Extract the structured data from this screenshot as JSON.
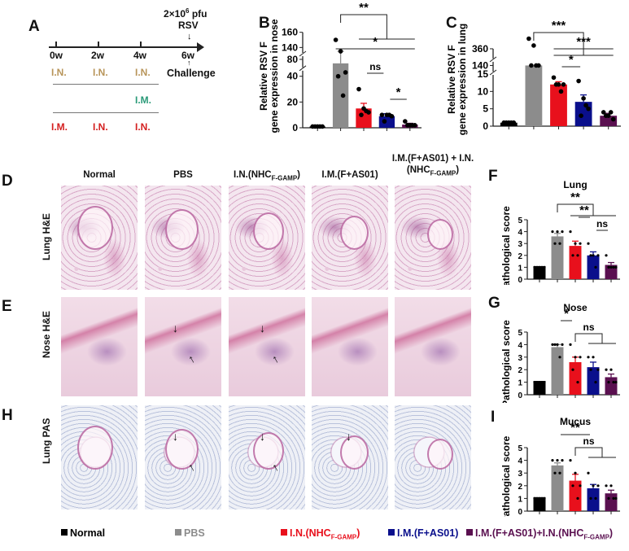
{
  "panels": {
    "A": "A",
    "B": "B",
    "C": "C",
    "D": "D",
    "E": "E",
    "F": "F",
    "G": "G",
    "H": "H",
    "I": "I"
  },
  "timeline": {
    "ticks": [
      "0w",
      "2w",
      "4w",
      "6w"
    ],
    "challenge_dose": "2×10",
    "challenge_exp": "6",
    "challenge_unit": " pfu",
    "challenge_virus": "RSV",
    "challenge_label": "Challenge",
    "rows": [
      {
        "items": [
          "I.N.",
          "I.N.",
          "I.N."
        ],
        "color": "#b8955a"
      },
      {
        "items": [
          "",
          "",
          "I.M."
        ],
        "color": "#2a9a78"
      },
      {
        "items": [
          "I.M.",
          "I.N.",
          "I.N."
        ],
        "color": "#d42020"
      }
    ]
  },
  "histology": {
    "columns": [
      {
        "main": "Normal",
        "sub": "",
        "tail": ""
      },
      {
        "main": "PBS",
        "sub": "",
        "tail": ""
      },
      {
        "main": "I.N.(NHC",
        "sub": "F-GAMP",
        "tail": ")"
      },
      {
        "main": "I.M.(F+AS01)",
        "sub": "",
        "tail": ""
      },
      {
        "main": "I.M.(F+AS01) + I.N.(NHC",
        "sub": "F-GAMP",
        "tail": ")"
      }
    ],
    "rows": [
      "Lung H&E",
      "Nose H&E",
      "Lung PAS"
    ],
    "arrow": "↓"
  },
  "legend": [
    {
      "main": "Normal",
      "sub": "",
      "tail": "",
      "color": "#000000"
    },
    {
      "main": "PBS",
      "sub": "",
      "tail": "",
      "color": "#8c8c8c"
    },
    {
      "main": "I.N.(NHC",
      "sub": "F-GAMP",
      "tail": ")",
      "color": "#e8101c"
    },
    {
      "main": "I.M.(F+AS01)",
      "sub": "",
      "tail": "",
      "color": "#0a0f8c"
    },
    {
      "main": "I.M.(F+AS01)+I.N.(NHC",
      "sub": "F-GAMP",
      "tail": ")",
      "color": "#5a1050"
    }
  ],
  "chart_data": [
    {
      "id": "B",
      "type": "bar",
      "title": "",
      "ylabel": [
        "Relative RSV F",
        "gene expression in nose"
      ],
      "categories": [
        "Normal",
        "PBS",
        "I.N.(NHC F-GAMP)",
        "I.M.(F+AS01)",
        "I.M.(F+AS01)+I.N.(NHC F-GAMP)"
      ],
      "colors": [
        "#000000",
        "#8c8c8c",
        "#e8101c",
        "#0a0f8c",
        "#5a1050"
      ],
      "values": [
        1,
        75,
        15,
        9,
        2.5
      ],
      "sem": [
        0.2,
        25,
        4,
        2,
        1
      ],
      "points": [
        [
          1,
          1,
          1,
          1,
          1
        ],
        [
          150,
          135,
          43,
          40,
          25
        ],
        [
          30,
          15,
          12,
          10,
          13
        ],
        [
          10,
          10,
          9,
          5,
          10
        ],
        [
          5,
          2,
          2,
          2,
          2
        ]
      ],
      "y_segments": [
        [
          0,
          45
        ],
        [
          72,
          85
        ],
        [
          135,
          165
        ]
      ],
      "yticks": [
        0,
        20,
        40,
        80,
        140,
        160
      ],
      "comparisons": [
        {
          "from": 1,
          "to": [
            2,
            4
          ],
          "label": "**",
          "level": 0
        },
        {
          "from": 1,
          "to": [
            2,
            4
          ],
          "label": "*",
          "level": 1,
          "simple": true
        },
        {
          "from": 2,
          "to": [
            3
          ],
          "label": "ns",
          "level": 2
        },
        {
          "from": 3,
          "to": [
            4
          ],
          "label": "*",
          "level": 3
        }
      ]
    },
    {
      "id": "C",
      "type": "bar",
      "title": "",
      "ylabel": [
        "Relative RSV F",
        "gene expression in lung"
      ],
      "categories": [
        "Normal",
        "PBS",
        "I.N.(NHC F-GAMP)",
        "I.M.(F+AS01)",
        "I.M.(F+AS01)+I.N.(NHC F-GAMP)"
      ],
      "colors": [
        "#000000",
        "#8c8c8c",
        "#e8101c",
        "#0a0f8c",
        "#5a1050"
      ],
      "values": [
        1,
        140,
        12,
        7,
        3
      ],
      "sem": [
        0.1,
        0,
        0.8,
        2,
        0.7
      ],
      "points": [
        [
          1,
          1,
          1,
          1,
          1
        ],
        [
          385,
          368,
          140,
          140,
          140
        ],
        [
          14,
          12,
          12,
          12,
          10
        ],
        [
          13,
          8,
          5,
          3,
          6
        ],
        [
          4,
          3,
          2,
          3,
          4
        ]
      ],
      "y_segments": [
        [
          0,
          15
        ],
        [
          132,
          148
        ],
        [
          340,
          390
        ]
      ],
      "yticks": [
        0,
        5,
        10,
        15,
        140,
        360
      ],
      "comparisons": [
        {
          "from": 1,
          "to": [
            2,
            4
          ],
          "label": "***",
          "level": 0
        },
        {
          "from": 2,
          "to": [
            4
          ],
          "label": "***",
          "level": 1,
          "simple": true
        },
        {
          "from": 2,
          "to": [
            3
          ],
          "label": "*",
          "level": 2
        }
      ]
    },
    {
      "id": "F",
      "type": "bar",
      "title": "Lung",
      "ylabel": [
        "Pathological score"
      ],
      "categories": [
        "Normal",
        "PBS",
        "I.N.(NHC F-GAMP)",
        "I.M.(F+AS01)",
        "I.M.(F+AS01)+I.N.(NHC F-GAMP)"
      ],
      "colors": [
        "#000000",
        "#8c8c8c",
        "#e8101c",
        "#0a0f8c",
        "#5a1050"
      ],
      "values": [
        1.1,
        3.6,
        2.8,
        2.0,
        1.2
      ],
      "sem": [
        0,
        0.25,
        0.4,
        0.3,
        0.2
      ],
      "points": [
        [
          1,
          1,
          1,
          1,
          1
        ],
        [
          4,
          4,
          4,
          3,
          3
        ],
        [
          4,
          3,
          3,
          2,
          2
        ],
        [
          3,
          2,
          2,
          2,
          1
        ],
        [
          2,
          1,
          1,
          1,
          1
        ]
      ],
      "ylim": [
        0,
        5
      ],
      "yticks": [
        0,
        1,
        2,
        3,
        4,
        5
      ],
      "comparisons": [
        {
          "from": 1,
          "to": [
            2,
            4
          ],
          "label": "**",
          "level": 0
        },
        {
          "from": 2,
          "to": [
            3
          ],
          "label": "**",
          "level": 1
        },
        {
          "from": 3,
          "to": [
            4
          ],
          "label": "ns",
          "level": 2
        }
      ]
    },
    {
      "id": "G",
      "type": "bar",
      "title": "Nose",
      "ylabel": [
        "Pathological score"
      ],
      "categories": [
        "Normal",
        "PBS",
        "I.N.(NHC F-GAMP)",
        "I.M.(F+AS01)",
        "I.M.(F+AS01)+I.N.(NHC F-GAMP)"
      ],
      "colors": [
        "#000000",
        "#8c8c8c",
        "#e8101c",
        "#0a0f8c",
        "#5a1050"
      ],
      "values": [
        1.1,
        3.8,
        2.6,
        2.2,
        1.4
      ],
      "sem": [
        0,
        0.2,
        0.4,
        0.4,
        0.25
      ],
      "points": [
        [
          1,
          1,
          1,
          1,
          1
        ],
        [
          4,
          4,
          4,
          4,
          3
        ],
        [
          4,
          3,
          3,
          2,
          1
        ],
        [
          3,
          3,
          2,
          2,
          1
        ],
        [
          2,
          2,
          1,
          1,
          1
        ]
      ],
      "ylim": [
        0,
        5
      ],
      "yticks": [
        0,
        1,
        2,
        3,
        4,
        5
      ],
      "comparisons": [
        {
          "from": 1,
          "to": [
            2
          ],
          "label": "*",
          "level": 0
        },
        {
          "from": 2,
          "to": [
            3,
            4
          ],
          "label": "ns",
          "level": 1
        }
      ]
    },
    {
      "id": "I",
      "type": "bar",
      "title": "Mucus",
      "ylabel": [
        "Pathological score"
      ],
      "categories": [
        "Normal",
        "PBS",
        "I.N.(NHC F-GAMP)",
        "I.M.(F+AS01)",
        "I.M.(F+AS01)+I.N.(NHC F-GAMP)"
      ],
      "colors": [
        "#000000",
        "#8c8c8c",
        "#e8101c",
        "#0a0f8c",
        "#5a1050"
      ],
      "values": [
        1.1,
        3.6,
        2.4,
        1.8,
        1.4
      ],
      "sem": [
        0,
        0.2,
        0.5,
        0.3,
        0.25
      ],
      "points": [
        [
          1,
          1,
          1,
          1,
          1
        ],
        [
          4,
          4,
          4,
          3,
          3
        ],
        [
          4,
          3,
          2,
          2,
          1
        ],
        [
          3,
          2,
          2,
          1,
          1
        ],
        [
          2,
          2,
          1,
          1,
          1
        ]
      ],
      "ylim": [
        0,
        5
      ],
      "yticks": [
        0,
        1,
        2,
        3,
        4,
        5
      ],
      "comparisons": [
        {
          "from": 1,
          "to": [
            3
          ],
          "label": "**",
          "level": 0
        },
        {
          "from": 2,
          "to": [
            3,
            4
          ],
          "label": "ns",
          "level": 1
        }
      ]
    }
  ]
}
